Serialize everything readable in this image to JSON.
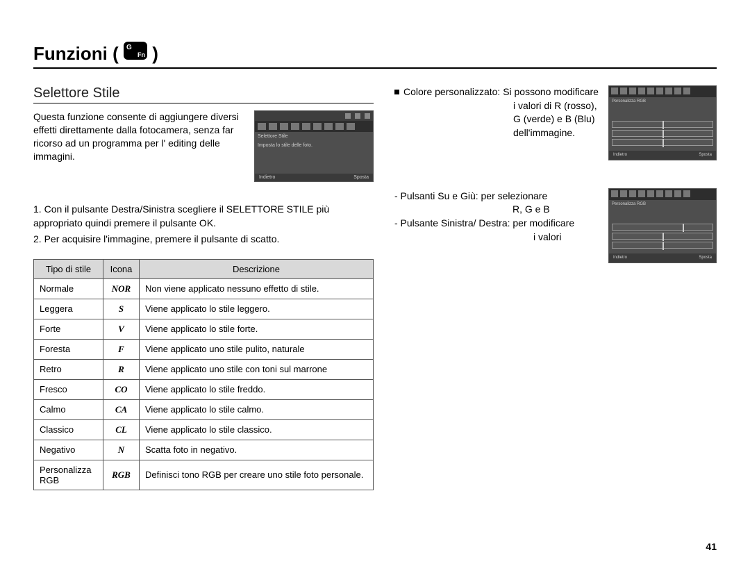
{
  "page_title": "Funzioni (",
  "page_title_close": ")",
  "section_title": "Selettore Stile",
  "intro": "Questa funzione consente di aggiungere diversi effetti direttamente dalla fotocamera, senza far ricorso ad un programma per l' editing delle immagini.",
  "steps": [
    "Con il pulsante Destra/Sinistra scegliere il SELETTORE STILE più appropriato quindi premere il pulsante OK.",
    "Per acquisire l'immagine, premere il pulsante di scatto."
  ],
  "table": {
    "headers": [
      "Tipo di stile",
      "Icona",
      "Descrizione"
    ],
    "rows": [
      {
        "type": "Normale",
        "icon": "NOR",
        "desc": "Non viene applicato nessuno effetto di stile."
      },
      {
        "type": "Leggera",
        "icon": "S",
        "desc": "Viene applicato lo stile leggero."
      },
      {
        "type": "Forte",
        "icon": "V",
        "desc": "Viene applicato lo stile forte."
      },
      {
        "type": "Foresta",
        "icon": "F",
        "desc": "Viene applicato uno stile pulito, naturale"
      },
      {
        "type": "Retro",
        "icon": "R",
        "desc": "Viene applicato uno stile con toni sul marrone"
      },
      {
        "type": "Fresco",
        "icon": "CO",
        "desc": "Viene applicato lo stile freddo."
      },
      {
        "type": "Calmo",
        "icon": "CA",
        "desc": "Viene applicato lo stile calmo."
      },
      {
        "type": "Classico",
        "icon": "CL",
        "desc": "Viene applicato lo stile classico."
      },
      {
        "type": "Negativo",
        "icon": "N",
        "desc": "Scatta foto in negativo."
      },
      {
        "type": "Personalizza RGB",
        "icon": "RGB",
        "desc": "Definisci tono RGB per creare uno stile foto personale."
      }
    ]
  },
  "right": {
    "bullet": "Colore personalizzato: Si possono modificare i valori di R (rosso), G (verde) e B (Blu) dell'immagine.",
    "bullet_label": "Colore personalizzato:",
    "bullet_rest_l1": "Si possono modificare",
    "bullet_rest_l2": "i valori di R (rosso),",
    "bullet_rest_l3": "G (verde) e B (Blu)",
    "bullet_rest_l4": "dell'immagine.",
    "dash1": "- Pulsanti Su e Giù: per selezionare",
    "dash1b": "R, G e B",
    "dash2": "- Pulsante Sinistra/ Destra: per modificare",
    "dash2b": "i valori"
  },
  "lcd": {
    "title": "Selettore Stile",
    "sub": "Imposta lo stile delle foto.",
    "back": "Indietro",
    "move": "Sposta"
  },
  "lcd_small": {
    "title": "Personalizza RGB",
    "back": "Indietro",
    "move": "Sposta"
  },
  "page_number": "41",
  "colors": {
    "text": "#000000",
    "rule": "#000000",
    "table_border": "#555555",
    "table_header_bg": "#d9d9d9",
    "lcd_bg": "#4e4e4e",
    "lcd_dark": "#2d2d2d"
  }
}
